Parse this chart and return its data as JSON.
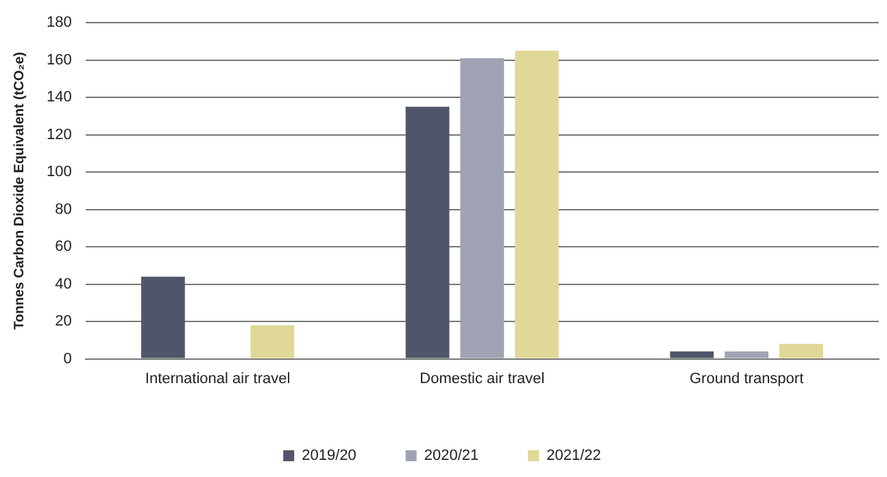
{
  "chart_data": {
    "type": "bar",
    "ylabel": "Tonnes Carbon Dioxide Equivalent (tCO₂e)",
    "categories": [
      "International air travel",
      "Domestic air travel",
      "Ground transport"
    ],
    "series": [
      {
        "name": "2019/20",
        "color": "#50566a",
        "values": [
          44,
          135,
          4
        ]
      },
      {
        "name": "2020/21",
        "color": "#a0a3b3",
        "values": [
          0,
          161,
          4
        ]
      },
      {
        "name": "2021/22",
        "color": "#e0d896",
        "values": [
          18,
          165,
          8
        ]
      }
    ],
    "ylim": [
      0,
      180
    ],
    "yticks": [
      0,
      20,
      40,
      60,
      80,
      100,
      120,
      140,
      160,
      180
    ],
    "grid": "y",
    "legend": "bottom"
  }
}
